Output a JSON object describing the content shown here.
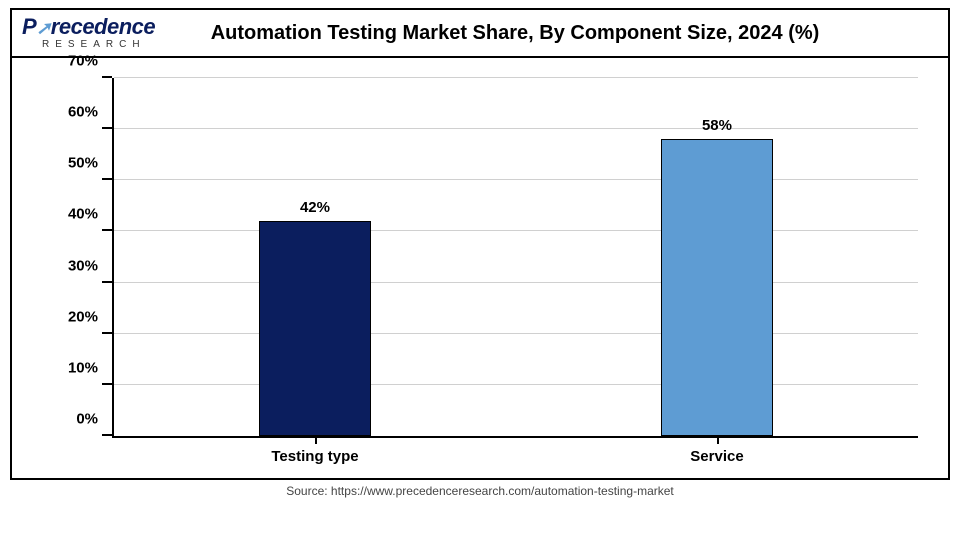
{
  "logo": {
    "brand_first": "P",
    "brand_rest": "recedence",
    "sub": "RESEARCH"
  },
  "title": "Automation Testing Market Share, By Component Size, 2024 (%)",
  "chart": {
    "type": "bar",
    "ylim": [
      0,
      70
    ],
    "ytick_step": 10,
    "ylabel_suffix": "%",
    "background_color": "#ffffff",
    "grid_color": "#d0d0d0",
    "axis_color": "#000000",
    "bar_width_pct": 14,
    "label_fontsize": 15,
    "title_fontsize": 20,
    "categories": [
      "Testing type",
      "Service"
    ],
    "values": [
      42,
      58
    ],
    "value_labels": [
      "42%",
      "58%"
    ],
    "bar_colors": [
      "#0b1e5e",
      "#5e9cd3"
    ],
    "bar_positions_pct": [
      25,
      75
    ]
  },
  "source": "Source: https://www.precedenceresearch.com/automation-testing-market"
}
